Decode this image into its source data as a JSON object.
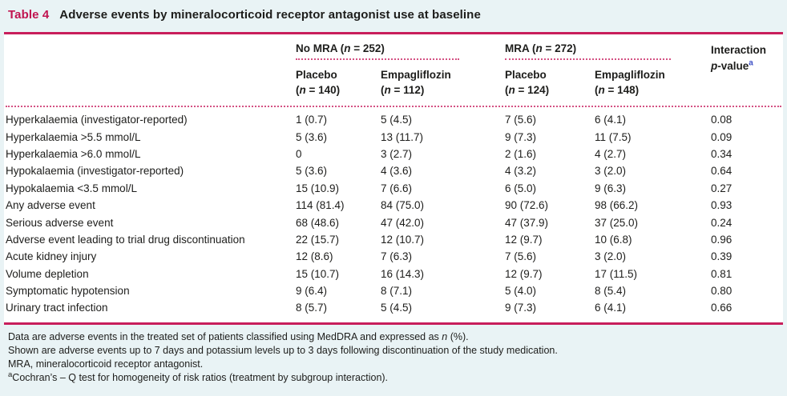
{
  "colors": {
    "page_background": "#e9f3f5",
    "card_background": "#ffffff",
    "rule_pink": "#c81e5b",
    "dotted_pink": "#d45183",
    "title_pink": "#c0134f",
    "text": "#1d1d1b",
    "superscript_blue": "#3c4fc5"
  },
  "title": {
    "label": "Table 4",
    "text": "Adverse events by mineralocorticoid receptor antagonist use at baseline"
  },
  "table": {
    "header": {
      "group_no_mra": {
        "prefix": "No MRA (",
        "italic": "n",
        "suffix": " = 252)"
      },
      "group_mra": {
        "prefix": "MRA (",
        "italic": "n",
        "suffix": " = 272)"
      },
      "interaction": {
        "line1": "Interaction",
        "p_italic": "p",
        "value_text": "-value",
        "sup": "a"
      },
      "subcols": [
        {
          "name": "Placebo",
          "n_prefix": "(",
          "n_italic": "n",
          "n_suffix": " = 140)"
        },
        {
          "name": "Empagliflozin",
          "n_prefix": "(",
          "n_italic": "n",
          "n_suffix": " = 112)"
        },
        {
          "name": "Placebo",
          "n_prefix": "(",
          "n_italic": "n",
          "n_suffix": " = 124)"
        },
        {
          "name": "Empagliflozin",
          "n_prefix": "(",
          "n_italic": "n",
          "n_suffix": " = 148)"
        }
      ]
    },
    "rows": [
      {
        "label": "Hyperkalaemia (investigator-reported)",
        "values": [
          "1 (0.7)",
          "5 (4.5)",
          "7 (5.6)",
          "6 (4.1)",
          "0.08"
        ]
      },
      {
        "label": "Hyperkalaemia >5.5 mmol/L",
        "values": [
          "5 (3.6)",
          "13 (11.7)",
          "9 (7.3)",
          "11 (7.5)",
          "0.09"
        ]
      },
      {
        "label": "Hyperkalaemia >6.0 mmol/L",
        "values": [
          "0",
          "3 (2.7)",
          "2 (1.6)",
          "4 (2.7)",
          "0.34"
        ]
      },
      {
        "label": "Hypokalaemia (investigator-reported)",
        "values": [
          "5 (3.6)",
          "4 (3.6)",
          "4 (3.2)",
          "3 (2.0)",
          "0.64"
        ]
      },
      {
        "label": "Hypokalaemia <3.5 mmol/L",
        "values": [
          "15 (10.9)",
          "7 (6.6)",
          "6 (5.0)",
          "9 (6.3)",
          "0.27"
        ]
      },
      {
        "label": "Any adverse event",
        "values": [
          "114 (81.4)",
          "84 (75.0)",
          "90 (72.6)",
          "98 (66.2)",
          "0.93"
        ]
      },
      {
        "label": "Serious adverse event",
        "values": [
          "68 (48.6)",
          "47 (42.0)",
          "47 (37.9)",
          "37 (25.0)",
          "0.24"
        ]
      },
      {
        "label": "Adverse event leading to trial drug discontinuation",
        "values": [
          "22 (15.7)",
          "12 (10.7)",
          "12 (9.7)",
          "10 (6.8)",
          "0.96"
        ]
      },
      {
        "label": "Acute kidney injury",
        "values": [
          "12 (8.6)",
          "7 (6.3)",
          "7 (5.6)",
          "3 (2.0)",
          "0.39"
        ]
      },
      {
        "label": "Volume depletion",
        "values": [
          "15 (10.7)",
          "16 (14.3)",
          "12 (9.7)",
          "17 (11.5)",
          "0.81"
        ]
      },
      {
        "label": "Symptomatic hypotension",
        "values": [
          "9 (6.4)",
          "8 (7.1)",
          "5 (4.0)",
          "8 (5.4)",
          "0.80"
        ]
      },
      {
        "label": "Urinary tract infection",
        "values": [
          "8 (5.7)",
          "5 (4.5)",
          "9 (7.3)",
          "6 (4.1)",
          "0.66"
        ]
      }
    ]
  },
  "footnotes": {
    "line1": {
      "pre": "Data are adverse events in the treated set of patients classified using MedDRA and expressed as ",
      "italic": "n",
      "post": " (%)."
    },
    "line2": "Shown are adverse events up to 7 days and potassium levels up to 3 days following discontinuation of the study medication.",
    "line3": "MRA, mineralocorticoid receptor antagonist.",
    "line4": {
      "sup": "a",
      "text": "Cochran’s – Q test for homogeneity of risk ratios (treatment by subgroup interaction)."
    }
  }
}
